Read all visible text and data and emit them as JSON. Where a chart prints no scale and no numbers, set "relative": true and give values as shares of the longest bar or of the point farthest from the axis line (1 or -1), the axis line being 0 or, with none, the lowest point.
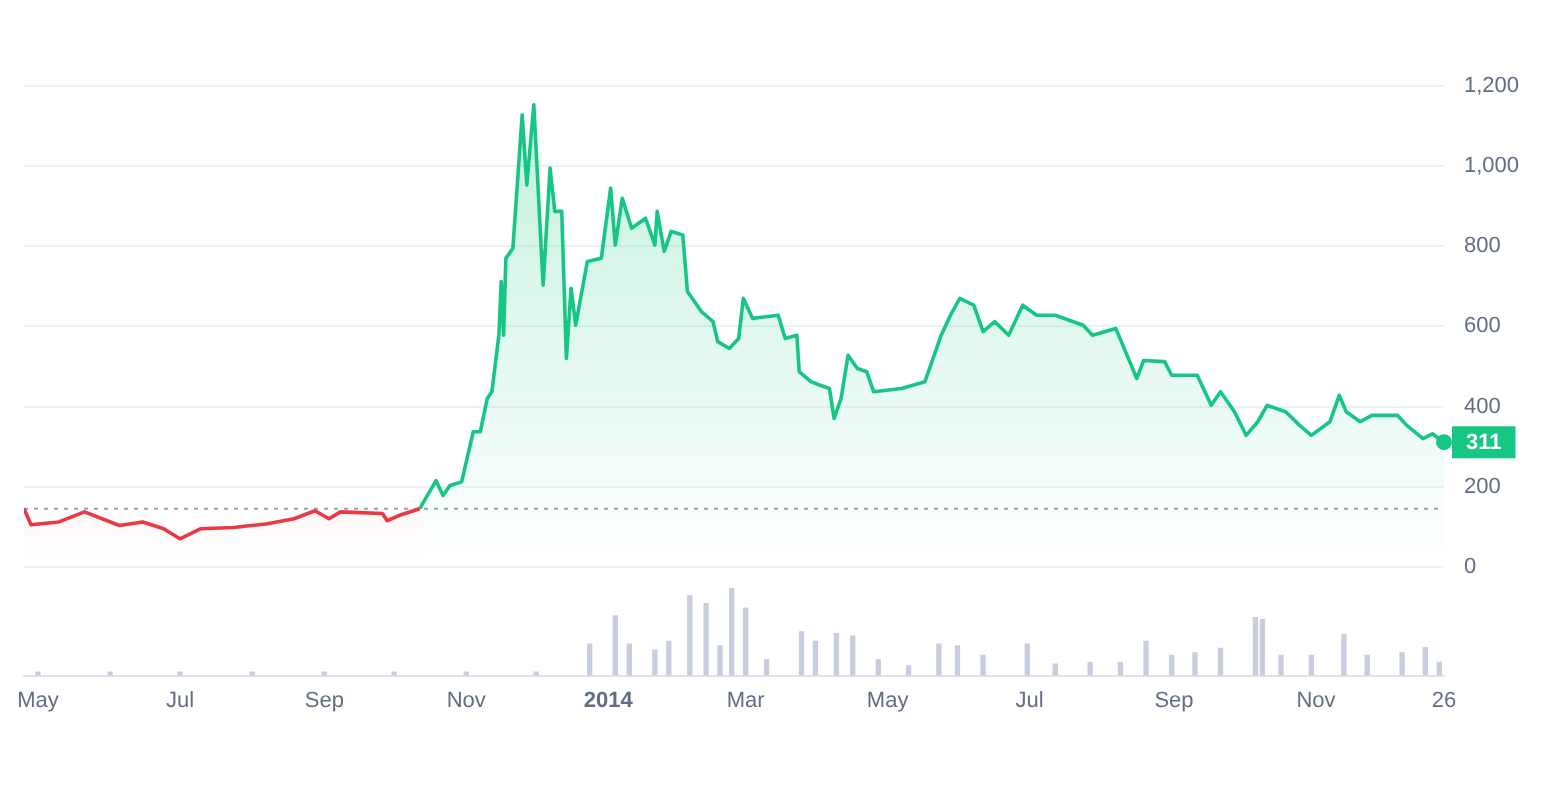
{
  "chart_data": [
    {
      "type": "area",
      "series": [
        {
          "color": "#ea3943",
          "x": [
            "2013-04-25",
            "2013-04-28",
            "2013-05-10",
            "2013-05-21",
            "2013-06-05",
            "2013-06-15",
            "2013-06-24",
            "2013-07-01",
            "2013-07-10",
            "2013-07-24",
            "2013-08-07",
            "2013-08-19",
            "2013-08-28",
            "2013-09-03",
            "2013-09-08",
            "2013-09-26",
            "2013-09-28",
            "2013-10-04",
            "2013-10-12"
          ],
          "values": [
            145,
            105,
            112,
            137,
            103,
            112,
            95,
            70,
            95,
            98,
            107,
            120,
            140,
            120,
            137,
            133,
            115,
            130,
            145
          ]
        },
        {
          "color": "#16c784",
          "x": [
            "2013-10-12",
            "2013-10-19",
            "2013-10-22",
            "2013-10-25",
            "2013-10-30",
            "2013-11-04",
            "2013-11-07",
            "2013-11-10",
            "2013-11-12",
            "2013-11-15",
            "2013-11-16",
            "2013-11-17",
            "2013-11-18",
            "2013-11-21",
            "2013-11-25",
            "2013-11-27",
            "2013-11-30",
            "2013-12-04",
            "2013-12-07",
            "2013-12-09",
            "2013-12-12",
            "2013-12-14",
            "2013-12-16",
            "2013-12-18",
            "2013-12-23",
            "2013-12-29",
            "2014-01-02",
            "2014-01-04",
            "2014-01-07",
            "2014-01-11",
            "2014-01-17",
            "2014-01-21",
            "2014-01-22",
            "2014-01-25",
            "2014-01-28",
            "2014-02-02",
            "2014-02-04",
            "2014-02-10",
            "2014-02-15",
            "2014-02-17",
            "2014-02-22",
            "2014-02-26",
            "2014-02-28",
            "2014-03-04",
            "2014-03-15",
            "2014-03-18",
            "2014-03-23",
            "2014-03-24",
            "2014-03-29",
            "2014-04-02",
            "2014-04-06",
            "2014-04-08",
            "2014-04-11",
            "2014-04-14",
            "2014-04-18",
            "2014-04-22",
            "2014-04-25",
            "2014-05-07",
            "2014-05-17",
            "2014-05-21",
            "2014-05-24",
            "2014-05-28",
            "2014-06-01",
            "2014-06-07",
            "2014-06-11",
            "2014-06-16",
            "2014-06-22",
            "2014-06-28",
            "2014-07-04",
            "2014-07-12",
            "2014-07-24",
            "2014-07-28",
            "2014-08-07",
            "2014-08-13",
            "2014-08-16",
            "2014-08-19",
            "2014-08-28",
            "2014-08-31",
            "2014-09-11",
            "2014-09-17",
            "2014-09-21",
            "2014-09-27",
            "2014-10-02",
            "2014-10-07",
            "2014-10-11",
            "2014-10-19",
            "2014-10-25",
            "2014-10-30",
            "2014-11-07",
            "2014-11-11",
            "2014-11-14",
            "2014-11-20",
            "2014-11-25",
            "2014-12-06",
            "2014-12-10",
            "2014-12-17",
            "2014-12-21",
            "2014-12-26"
          ],
          "values": [
            145,
            215,
            178,
            203,
            212,
            337,
            337,
            420,
            437,
            578,
            712,
            578,
            770,
            795,
            1128,
            953,
            1153,
            703,
            995,
            887,
            887,
            520,
            695,
            603,
            762,
            770,
            945,
            803,
            920,
            845,
            870,
            803,
            887,
            787,
            837,
            828,
            687,
            637,
            612,
            562,
            545,
            570,
            670,
            620,
            628,
            570,
            578,
            487,
            462,
            453,
            445,
            370,
            420,
            528,
            495,
            487,
            437,
            445,
            462,
            528,
            578,
            628,
            670,
            653,
            587,
            612,
            578,
            653,
            628,
            628,
            603,
            578,
            595,
            512,
            470,
            515,
            512,
            478,
            478,
            403,
            437,
            387,
            328,
            362,
            403,
            387,
            353,
            328,
            362,
            428,
            387,
            362,
            378,
            378,
            353,
            320,
            332,
            311
          ]
        }
      ],
      "xlim": [
        "2013-04-25",
        "2014-12-26"
      ],
      "ylim": [
        0,
        1200
      ],
      "yticks": [
        0,
        200,
        400,
        600,
        800,
        {
          "value": 1000,
          "label": "1,000"
        },
        {
          "value": 1200,
          "label": "1,200"
        }
      ],
      "grid": "y",
      "legend": false,
      "tick_labels": "y",
      "ref_lines": [
        {
          "axis": "y",
          "value": 145,
          "color": "#9aa1ad",
          "line_style": "dotted"
        }
      ],
      "annotations": [
        {
          "text": "311",
          "x": "2014-12-26",
          "y": 311
        }
      ]
    },
    {
      "type": "bar",
      "relative": true,
      "color": "#c8cde0",
      "tick_labels": "x",
      "legend": false,
      "x": [
        "2013-05-01",
        "2013-06-01",
        "2013-07-01",
        "2013-08-01",
        "2013-09-01",
        "2013-10-01",
        "2013-11-01",
        "2013-12-01",
        "2013-12-24",
        "2014-01-04",
        "2014-01-10",
        "2014-01-21",
        "2014-01-27",
        "2014-02-05",
        "2014-02-12",
        "2014-02-18",
        "2014-02-23",
        "2014-03-01",
        "2014-03-10",
        "2014-03-25",
        "2014-03-31",
        "2014-04-09",
        "2014-04-16",
        "2014-04-27",
        "2014-05-10",
        "2014-05-23",
        "2014-05-31",
        "2014-06-11",
        "2014-06-30",
        "2014-07-12",
        "2014-07-27",
        "2014-08-09",
        "2014-08-20",
        "2014-08-31",
        "2014-09-10",
        "2014-09-21",
        "2014-10-06",
        "2014-10-09",
        "2014-10-17",
        "2014-10-30",
        "2014-11-13",
        "2014-11-23",
        "2014-12-08",
        "2014-12-18",
        "2014-12-24"
      ],
      "values": [
        0.04,
        0.04,
        0.04,
        0.04,
        0.04,
        0.04,
        0.04,
        0.04,
        0.36,
        0.68,
        0.36,
        0.29,
        0.39,
        0.91,
        0.82,
        0.34,
        1,
        0.77,
        0.18,
        0.5,
        0.39,
        0.48,
        0.45,
        0.18,
        0.11,
        0.36,
        0.34,
        0.23,
        0.36,
        0.13,
        0.15,
        0.15,
        0.39,
        0.23,
        0.26,
        0.31,
        0.66,
        0.64,
        0.23,
        0.23,
        0.47,
        0.23,
        0.26,
        0.32,
        0.15
      ],
      "xlim": [
        "2013-04-25",
        "2014-12-26"
      ],
      "xticks": [
        {
          "value": "2013-05-01",
          "label": "May"
        },
        {
          "value": "2013-07-01",
          "label": "Jul"
        },
        {
          "value": "2013-09-01",
          "label": "Sep"
        },
        {
          "value": "2013-11-01",
          "label": "Nov"
        },
        {
          "value": "2014-01-01",
          "label": "2014"
        },
        {
          "value": "2014-03-01",
          "label": "Mar"
        },
        {
          "value": "2014-05-01",
          "label": "May"
        },
        {
          "value": "2014-07-01",
          "label": "Jul"
        },
        {
          "value": "2014-09-01",
          "label": "Sep"
        },
        {
          "value": "2014-11-01",
          "label": "Nov"
        },
        {
          "value": "2014-12-26",
          "label": "26"
        }
      ]
    }
  ]
}
